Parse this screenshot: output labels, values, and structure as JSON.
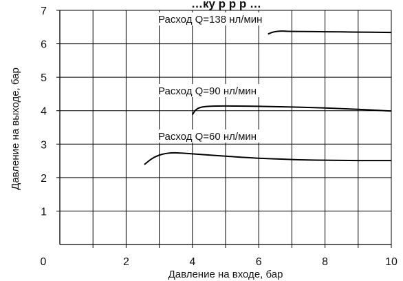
{
  "chart_data": {
    "type": "line",
    "title": "…ку             р       р   р   …",
    "xlabel": "Давление на входе, бар",
    "ylabel": "Давление на выходе, бар",
    "xlim": [
      0,
      10
    ],
    "ylim": [
      0,
      7
    ],
    "x_ticks": [
      0,
      2,
      4,
      6,
      8,
      10
    ],
    "x_tick_labels": [
      "0",
      "2",
      "4",
      "6",
      "8",
      "10"
    ],
    "y_ticks": [
      1,
      2,
      3,
      4,
      5,
      6,
      7
    ],
    "y_tick_labels": [
      "1",
      "2",
      "3",
      "4",
      "5",
      "6",
      "7"
    ],
    "grid": true,
    "series": [
      {
        "name": "Расход Q=138 нл/мин",
        "x": [
          6.28,
          6.4,
          6.55,
          6.7,
          7.0,
          8.0,
          9.0,
          10.0
        ],
        "y": [
          6.29,
          6.34,
          6.37,
          6.38,
          6.37,
          6.36,
          6.35,
          6.34
        ]
      },
      {
        "name": "Расход Q=90 нл/мин",
        "x": [
          4.0,
          4.1,
          4.25,
          4.5,
          5.0,
          6.0,
          7.0,
          8.0,
          9.0,
          10.0
        ],
        "y": [
          3.88,
          4.02,
          4.1,
          4.13,
          4.14,
          4.13,
          4.11,
          4.08,
          4.04,
          3.99
        ]
      },
      {
        "name": "Расход Q=60 нл/мин",
        "x": [
          2.55,
          2.8,
          3.1,
          3.45,
          4.0,
          5.0,
          6.0,
          7.0,
          8.0,
          9.0,
          10.0
        ],
        "y": [
          2.39,
          2.58,
          2.7,
          2.74,
          2.71,
          2.64,
          2.58,
          2.54,
          2.52,
          2.51,
          2.51
        ]
      }
    ]
  }
}
